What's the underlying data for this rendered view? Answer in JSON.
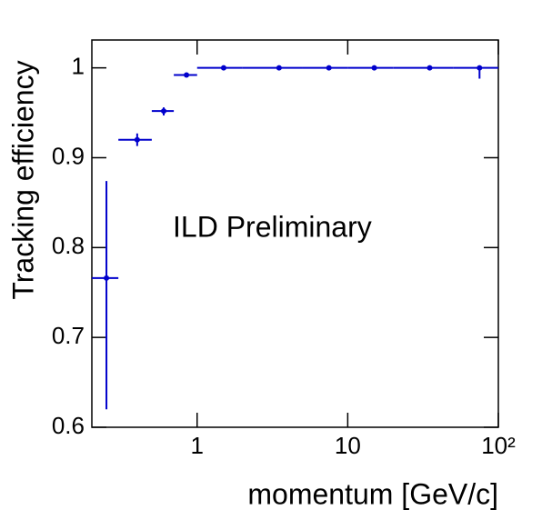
{
  "chart_data": {
    "type": "errorbar",
    "xlabel": "momentum [GeV/c]",
    "ylabel": "Tracking efficiency",
    "annotation": "ILD Preliminary",
    "annotation_color": "#5555dd",
    "log_x": true,
    "xlim": [
      0.2,
      100
    ],
    "ylim": [
      0.6,
      1.031
    ],
    "xticks": [
      1,
      10,
      {
        "value": 100,
        "label": "10²"
      }
    ],
    "yticks": [
      0.6,
      0.7,
      0.8,
      0.9,
      1
    ],
    "series": [
      {
        "color": "#0000cc",
        "x": [
          0.25,
          0.4,
          0.6,
          0.85,
          1.5,
          3.5,
          7.5,
          15,
          35,
          75
        ],
        "x_low": [
          0.2,
          0.3,
          0.5,
          0.7,
          1,
          2,
          5,
          10,
          20,
          50
        ],
        "x_high": [
          0.3,
          0.5,
          0.7,
          1,
          2,
          5,
          10,
          20,
          50,
          100
        ],
        "values": [
          0.766,
          0.92,
          0.952,
          0.992,
          1,
          1,
          1,
          1,
          1,
          1
        ],
        "yerr_low": [
          0.146,
          0.007,
          0.005,
          0.002,
          0.001,
          0.001,
          0.001,
          0.001,
          0.001,
          0.012
        ],
        "yerr_high": [
          0.108,
          0.007,
          0.004,
          0.002,
          0.001,
          0.001,
          0.001,
          0.001,
          0.001,
          0.001
        ]
      }
    ]
  }
}
